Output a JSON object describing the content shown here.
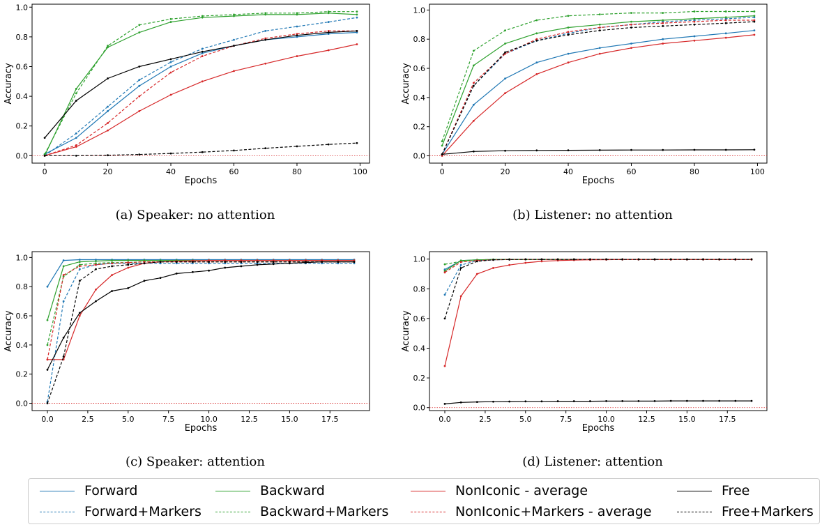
{
  "colors": {
    "forward": "#1f77b4",
    "backward": "#2ca02c",
    "noniconic": "#d62728",
    "free": "#000000",
    "zero_line": "#d62728"
  },
  "legend": {
    "items": [
      {
        "label": "Forward",
        "series": "forward",
        "style": "solid"
      },
      {
        "label": "Backward",
        "series": "backward",
        "style": "solid"
      },
      {
        "label": "NonIconic - average",
        "series": "noniconic",
        "style": "solid"
      },
      {
        "label": "Free",
        "series": "free",
        "style": "solid"
      },
      {
        "label": "Forward+Markers",
        "series": "forward",
        "style": "dashed"
      },
      {
        "label": "Backward+Markers",
        "series": "backward",
        "style": "dashed"
      },
      {
        "label": "NonIconic+Markers - average",
        "series": "noniconic",
        "style": "dashed"
      },
      {
        "label": "Free+Markers",
        "series": "free",
        "style": "dashed"
      }
    ]
  },
  "chart_data": [
    {
      "id": "a",
      "type": "line",
      "caption": "(a)  Speaker: no attention",
      "xlabel": "Epochs",
      "ylabel": "Accuracy",
      "xlim": [
        -4,
        103
      ],
      "ylim": [
        -0.05,
        1.02
      ],
      "xticks": [
        0,
        20,
        40,
        60,
        80,
        100
      ],
      "xtick_labels": [
        "0",
        "20",
        "40",
        "60",
        "80",
        "100"
      ],
      "yticks": [
        0.0,
        0.2,
        0.4,
        0.6,
        0.8,
        1.0
      ],
      "ytick_labels": [
        "0.0",
        "0.2",
        "0.4",
        "0.6",
        "0.8",
        "1.0"
      ],
      "x": [
        0,
        10,
        20,
        30,
        40,
        50,
        60,
        70,
        80,
        90,
        99
      ],
      "series": [
        {
          "key": "forward",
          "style": "solid",
          "values": [
            0.01,
            0.12,
            0.3,
            0.47,
            0.6,
            0.69,
            0.74,
            0.78,
            0.8,
            0.82,
            0.83
          ]
        },
        {
          "key": "forward",
          "style": "dashed",
          "values": [
            0.0,
            0.15,
            0.33,
            0.51,
            0.63,
            0.72,
            0.78,
            0.84,
            0.87,
            0.9,
            0.93
          ]
        },
        {
          "key": "backward",
          "style": "solid",
          "values": [
            0.0,
            0.45,
            0.73,
            0.83,
            0.9,
            0.93,
            0.94,
            0.95,
            0.95,
            0.96,
            0.95
          ]
        },
        {
          "key": "backward",
          "style": "dashed",
          "values": [
            0.01,
            0.42,
            0.74,
            0.88,
            0.92,
            0.94,
            0.95,
            0.96,
            0.96,
            0.97,
            0.97
          ]
        },
        {
          "key": "noniconic",
          "style": "solid",
          "values": [
            0.0,
            0.06,
            0.17,
            0.3,
            0.41,
            0.5,
            0.57,
            0.62,
            0.67,
            0.71,
            0.75
          ]
        },
        {
          "key": "noniconic",
          "style": "dashed",
          "values": [
            0.0,
            0.07,
            0.22,
            0.4,
            0.56,
            0.67,
            0.74,
            0.79,
            0.82,
            0.84,
            0.84
          ]
        },
        {
          "key": "free",
          "style": "solid",
          "values": [
            0.12,
            0.37,
            0.52,
            0.6,
            0.65,
            0.7,
            0.74,
            0.78,
            0.81,
            0.83,
            0.84
          ]
        },
        {
          "key": "free",
          "style": "dashed",
          "values": [
            0.0,
            0.0,
            0.003,
            0.008,
            0.015,
            0.024,
            0.035,
            0.05,
            0.063,
            0.076,
            0.085
          ]
        }
      ]
    },
    {
      "id": "b",
      "type": "line",
      "caption": "(b)  Listener: no attention",
      "xlabel": "Epochs",
      "ylabel": "Accuracy",
      "xlim": [
        -4,
        103
      ],
      "ylim": [
        -0.05,
        1.04
      ],
      "xticks": [
        0,
        20,
        40,
        60,
        80,
        100
      ],
      "xtick_labels": [
        "0",
        "20",
        "40",
        "60",
        "80",
        "100"
      ],
      "yticks": [
        0.0,
        0.2,
        0.4,
        0.6,
        0.8,
        1.0
      ],
      "ytick_labels": [
        "0.0",
        "0.2",
        "0.4",
        "0.6",
        "0.8",
        "1.0"
      ],
      "x": [
        0,
        10,
        20,
        30,
        40,
        50,
        60,
        70,
        80,
        90,
        99
      ],
      "series": [
        {
          "key": "forward",
          "style": "solid",
          "values": [
            0.01,
            0.35,
            0.53,
            0.64,
            0.7,
            0.74,
            0.77,
            0.8,
            0.82,
            0.84,
            0.86
          ]
        },
        {
          "key": "forward",
          "style": "dashed",
          "values": [
            0.01,
            0.48,
            0.7,
            0.79,
            0.84,
            0.88,
            0.9,
            0.92,
            0.93,
            0.94,
            0.95
          ]
        },
        {
          "key": "backward",
          "style": "solid",
          "values": [
            0.07,
            0.62,
            0.77,
            0.84,
            0.88,
            0.9,
            0.92,
            0.93,
            0.94,
            0.95,
            0.96
          ]
        },
        {
          "key": "backward",
          "style": "dashed",
          "values": [
            0.1,
            0.72,
            0.86,
            0.93,
            0.96,
            0.97,
            0.98,
            0.98,
            0.99,
            0.99,
            0.99
          ]
        },
        {
          "key": "noniconic",
          "style": "solid",
          "values": [
            0.0,
            0.24,
            0.43,
            0.56,
            0.64,
            0.7,
            0.74,
            0.77,
            0.79,
            0.81,
            0.83
          ]
        },
        {
          "key": "noniconic",
          "style": "dashed",
          "values": [
            0.01,
            0.5,
            0.7,
            0.8,
            0.85,
            0.88,
            0.9,
            0.91,
            0.92,
            0.93,
            0.93
          ]
        },
        {
          "key": "free",
          "style": "solid",
          "values": [
            0.01,
            0.03,
            0.035,
            0.037,
            0.038,
            0.039,
            0.04,
            0.04,
            0.041,
            0.041,
            0.042
          ]
        },
        {
          "key": "free",
          "style": "dashed",
          "values": [
            0.01,
            0.48,
            0.71,
            0.79,
            0.83,
            0.86,
            0.88,
            0.89,
            0.9,
            0.91,
            0.92
          ]
        }
      ]
    },
    {
      "id": "c",
      "type": "line",
      "caption": "(c)  Speaker: attention",
      "xlabel": "Epochs",
      "ylabel": "Accuracy",
      "xlim": [
        -0.95,
        19.95
      ],
      "ylim": [
        -0.05,
        1.04
      ],
      "xticks": [
        0,
        2.5,
        5,
        7.5,
        10,
        12.5,
        15,
        17.5
      ],
      "xtick_labels": [
        "0.0",
        "2.5",
        "5.0",
        "7.5",
        "10.0",
        "12.5",
        "15.0",
        "17.5"
      ],
      "yticks": [
        0.0,
        0.2,
        0.4,
        0.6,
        0.8,
        1.0
      ],
      "ytick_labels": [
        "0.0",
        "0.2",
        "0.4",
        "0.6",
        "0.8",
        "1.0"
      ],
      "x": [
        0,
        1,
        2,
        3,
        4,
        5,
        6,
        7,
        8,
        9,
        10,
        11,
        12,
        13,
        14,
        15,
        16,
        17,
        18,
        19
      ],
      "series": [
        {
          "key": "forward",
          "style": "solid",
          "values": [
            0.8,
            0.98,
            0.985,
            0.985,
            0.985,
            0.985,
            0.985,
            0.985,
            0.985,
            0.985,
            0.985,
            0.985,
            0.985,
            0.985,
            0.985,
            0.985,
            0.985,
            0.985,
            0.985,
            0.985
          ]
        },
        {
          "key": "forward",
          "style": "dashed",
          "values": [
            0.01,
            0.7,
            0.92,
            0.95,
            0.96,
            0.96,
            0.96,
            0.96,
            0.96,
            0.96,
            0.96,
            0.96,
            0.96,
            0.96,
            0.96,
            0.96,
            0.96,
            0.96,
            0.96,
            0.96
          ]
        },
        {
          "key": "backward",
          "style": "solid",
          "values": [
            0.57,
            0.94,
            0.97,
            0.975,
            0.98,
            0.98,
            0.98,
            0.98,
            0.98,
            0.98,
            0.98,
            0.98,
            0.98,
            0.98,
            0.98,
            0.98,
            0.98,
            0.98,
            0.98,
            0.98
          ]
        },
        {
          "key": "backward",
          "style": "dashed",
          "values": [
            0.4,
            0.87,
            0.95,
            0.96,
            0.965,
            0.965,
            0.97,
            0.97,
            0.97,
            0.97,
            0.97,
            0.97,
            0.97,
            0.97,
            0.97,
            0.97,
            0.97,
            0.97,
            0.97,
            0.97
          ]
        },
        {
          "key": "noniconic",
          "style": "solid",
          "values": [
            0.3,
            0.3,
            0.6,
            0.78,
            0.88,
            0.93,
            0.96,
            0.97,
            0.975,
            0.978,
            0.98,
            0.98,
            0.98,
            0.98,
            0.98,
            0.98,
            0.98,
            0.98,
            0.98,
            0.98
          ]
        },
        {
          "key": "noniconic",
          "style": "dashed",
          "values": [
            0.3,
            0.88,
            0.94,
            0.95,
            0.96,
            0.965,
            0.97,
            0.97,
            0.97,
            0.97,
            0.97,
            0.97,
            0.97,
            0.97,
            0.97,
            0.97,
            0.97,
            0.97,
            0.97,
            0.97
          ]
        },
        {
          "key": "free",
          "style": "solid",
          "values": [
            0.23,
            0.45,
            0.62,
            0.7,
            0.77,
            0.79,
            0.84,
            0.86,
            0.89,
            0.9,
            0.91,
            0.93,
            0.94,
            0.95,
            0.955,
            0.96,
            0.965,
            0.97,
            0.97,
            0.97
          ]
        },
        {
          "key": "free",
          "style": "dashed",
          "values": [
            0.0,
            0.32,
            0.84,
            0.92,
            0.94,
            0.95,
            0.96,
            0.97,
            0.97,
            0.97,
            0.97,
            0.97,
            0.97,
            0.97,
            0.97,
            0.97,
            0.97,
            0.97,
            0.97,
            0.97
          ]
        }
      ]
    },
    {
      "id": "d",
      "type": "line",
      "caption": "(d)  Listener: attention",
      "xlabel": "Epochs",
      "ylabel": "Accuracy",
      "xlim": [
        -0.95,
        19.95
      ],
      "ylim": [
        -0.02,
        1.05
      ],
      "xticks": [
        0,
        2.5,
        5,
        7.5,
        10,
        12.5,
        15,
        17.5
      ],
      "xtick_labels": [
        "0.0",
        "2.5",
        "5.0",
        "7.5",
        "10.0",
        "12.5",
        "15.0",
        "17.5"
      ],
      "yticks": [
        0.0,
        0.2,
        0.4,
        0.6,
        0.8,
        1.0
      ],
      "ytick_labels": [
        "0.0",
        "0.2",
        "0.4",
        "0.6",
        "0.8",
        "1.0"
      ],
      "x": [
        0,
        1,
        2,
        3,
        4,
        5,
        6,
        7,
        8,
        9,
        10,
        11,
        12,
        13,
        14,
        15,
        16,
        17,
        18,
        19
      ],
      "series": [
        {
          "key": "forward",
          "style": "solid",
          "values": [
            0.93,
            0.99,
            0.995,
            0.997,
            0.998,
            0.998,
            0.998,
            0.998,
            0.998,
            0.998,
            0.998,
            0.998,
            0.998,
            0.998,
            0.998,
            0.998,
            0.998,
            0.998,
            0.998,
            0.998
          ]
        },
        {
          "key": "forward",
          "style": "dashed",
          "values": [
            0.76,
            0.96,
            0.99,
            0.995,
            0.997,
            0.998,
            0.998,
            0.998,
            0.998,
            0.998,
            0.998,
            0.998,
            0.998,
            0.998,
            0.998,
            0.998,
            0.998,
            0.998,
            0.998,
            0.998
          ]
        },
        {
          "key": "backward",
          "style": "solid",
          "values": [
            0.92,
            0.99,
            0.995,
            0.997,
            0.998,
            0.998,
            0.998,
            0.998,
            0.998,
            0.998,
            0.998,
            0.998,
            0.998,
            0.998,
            0.998,
            0.998,
            0.998,
            0.998,
            0.998,
            0.998
          ]
        },
        {
          "key": "backward",
          "style": "dashed",
          "values": [
            0.965,
            0.985,
            0.995,
            0.997,
            0.998,
            0.998,
            0.998,
            0.998,
            0.998,
            0.998,
            0.998,
            0.998,
            0.998,
            0.998,
            0.998,
            0.998,
            0.998,
            0.998,
            0.998,
            0.998
          ]
        },
        {
          "key": "noniconic",
          "style": "solid",
          "values": [
            0.28,
            0.75,
            0.9,
            0.94,
            0.96,
            0.975,
            0.985,
            0.99,
            0.993,
            0.995,
            0.996,
            0.997,
            0.997,
            0.997,
            0.997,
            0.997,
            0.997,
            0.997,
            0.997,
            0.997
          ]
        },
        {
          "key": "noniconic",
          "style": "dashed",
          "values": [
            0.91,
            0.98,
            0.99,
            0.995,
            0.997,
            0.998,
            0.998,
            0.998,
            0.998,
            0.998,
            0.998,
            0.998,
            0.998,
            0.998,
            0.998,
            0.998,
            0.998,
            0.998,
            0.998,
            0.998
          ]
        },
        {
          "key": "free",
          "style": "solid",
          "values": [
            0.025,
            0.035,
            0.038,
            0.04,
            0.041,
            0.042,
            0.042,
            0.043,
            0.043,
            0.043,
            0.044,
            0.044,
            0.044,
            0.044,
            0.045,
            0.045,
            0.045,
            0.045,
            0.045,
            0.045
          ]
        },
        {
          "key": "free",
          "style": "dashed",
          "values": [
            0.6,
            0.94,
            0.985,
            0.995,
            0.997,
            0.998,
            0.998,
            0.998,
            0.998,
            0.998,
            0.998,
            0.998,
            0.998,
            0.998,
            0.998,
            0.998,
            0.998,
            0.998,
            0.998,
            0.998
          ]
        }
      ]
    }
  ]
}
